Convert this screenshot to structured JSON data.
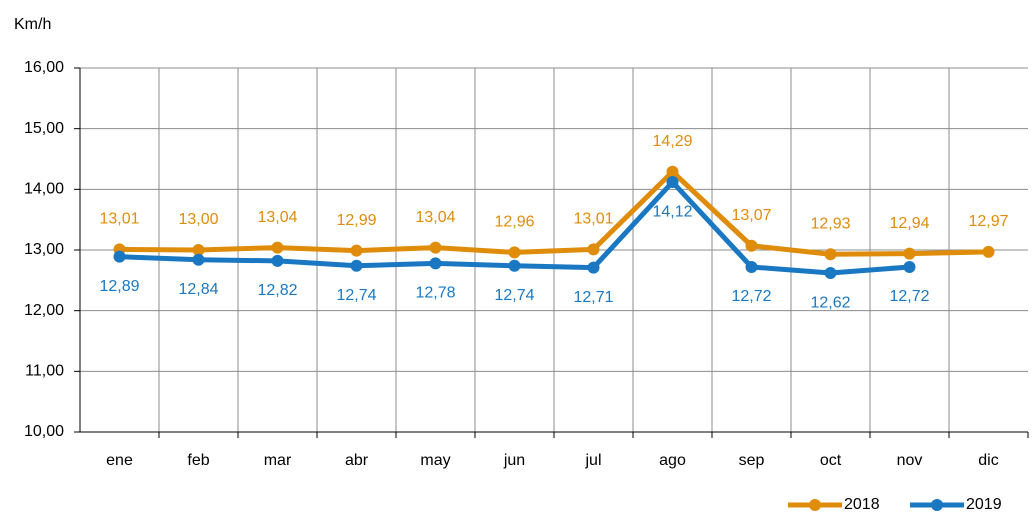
{
  "chart_data": {
    "type": "line",
    "y_label": "Km/h",
    "categories": [
      "ene",
      "feb",
      "mar",
      "abr",
      "may",
      "jun",
      "jul",
      "ago",
      "sep",
      "oct",
      "nov",
      "dic"
    ],
    "series": [
      {
        "name": "2018",
        "color": "#e08c0b",
        "values": [
          13.01,
          13.0,
          13.04,
          12.99,
          13.04,
          12.96,
          13.01,
          14.29,
          13.07,
          12.93,
          12.94,
          12.97
        ],
        "value_labels": [
          "13,01",
          "13,00",
          "13,04",
          "12,99",
          "13,04",
          "12,96",
          "13,01",
          "14,29",
          "13,07",
          "12,93",
          "12,94",
          "12,97"
        ]
      },
      {
        "name": "2019",
        "color": "#1a78c2",
        "values": [
          12.89,
          12.84,
          12.82,
          12.74,
          12.78,
          12.74,
          12.71,
          14.12,
          12.72,
          12.62,
          12.72,
          null
        ],
        "value_labels": [
          "12,89",
          "12,84",
          "12,82",
          "12,74",
          "12,78",
          "12,74",
          "12,71",
          "14,12",
          "12,72",
          "12,62",
          "12,72",
          null
        ]
      }
    ],
    "ylim": [
      10,
      16
    ],
    "yticks": [
      {
        "value": 10,
        "label": "10,00"
      },
      {
        "value": 11,
        "label": "11,00"
      },
      {
        "value": 12,
        "label": "12,00"
      },
      {
        "value": 13,
        "label": "13,00"
      },
      {
        "value": 14,
        "label": "14,00"
      },
      {
        "value": 15,
        "label": "15,00"
      },
      {
        "value": 16,
        "label": "16,00"
      }
    ],
    "grid": true,
    "legend": "bottom-right"
  }
}
